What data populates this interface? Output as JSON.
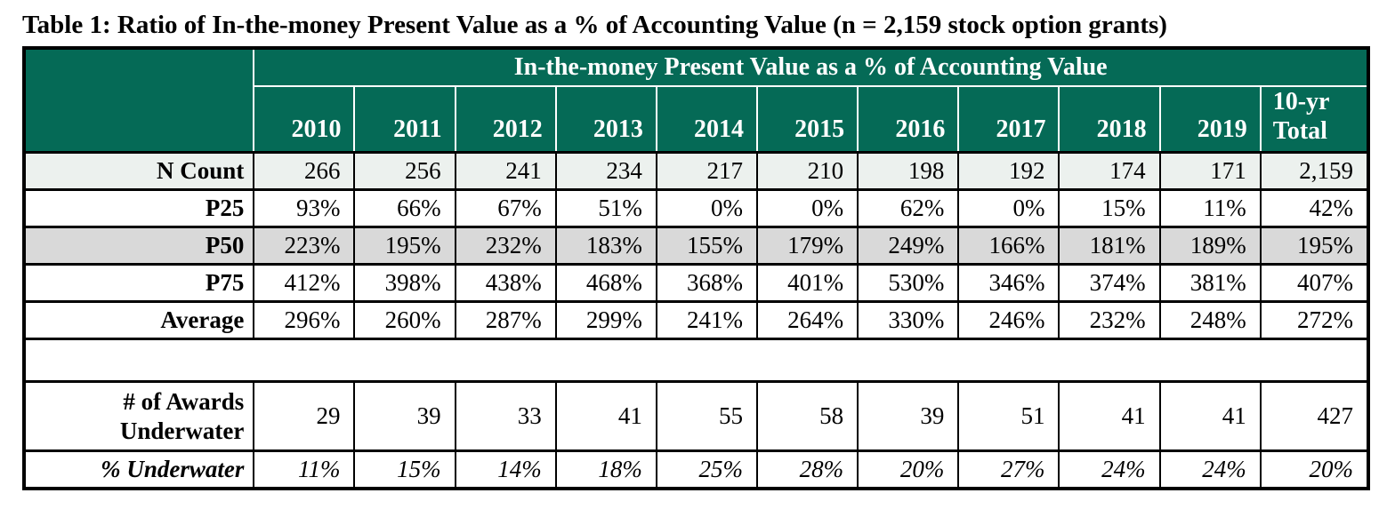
{
  "page_title": "Table 1: Ratio of In-the-money Present Value as a % of Accounting Value (n = 2,159 stock option grants)",
  "colors": {
    "header_green": "#056a56",
    "row_light": "#ecf1ee",
    "row_gray": "#d9d9d9",
    "grid_black": "#000000",
    "grid_white": "#ffffff"
  },
  "table": {
    "group_header": "In-the-money Present Value as a % of Accounting Value",
    "column_headers": [
      "2010",
      "2011",
      "2012",
      "2013",
      "2014",
      "2015",
      "2016",
      "2017",
      "2018",
      "2019",
      "10-yr\nTotal"
    ],
    "rows": {
      "n_count": {
        "label": "N Count",
        "values": [
          "266",
          "256",
          "241",
          "234",
          "217",
          "210",
          "198",
          "192",
          "174",
          "171",
          "2,159"
        ]
      },
      "p25": {
        "label": "P25",
        "values": [
          "93%",
          "66%",
          "67%",
          "51%",
          "0%",
          "0%",
          "62%",
          "0%",
          "15%",
          "11%",
          "42%"
        ]
      },
      "p50": {
        "label": "P50",
        "values": [
          "223%",
          "195%",
          "232%",
          "183%",
          "155%",
          "179%",
          "249%",
          "166%",
          "181%",
          "189%",
          "195%"
        ]
      },
      "p75": {
        "label": "P75",
        "values": [
          "412%",
          "398%",
          "438%",
          "468%",
          "368%",
          "401%",
          "530%",
          "346%",
          "374%",
          "381%",
          "407%"
        ]
      },
      "average": {
        "label": "Average",
        "values": [
          "296%",
          "260%",
          "287%",
          "299%",
          "241%",
          "264%",
          "330%",
          "246%",
          "232%",
          "248%",
          "272%"
        ]
      },
      "awards_underwater": {
        "label": "# of Awards\nUnderwater",
        "values": [
          "29",
          "39",
          "33",
          "41",
          "55",
          "58",
          "39",
          "51",
          "41",
          "41",
          "427"
        ]
      },
      "pct_underwater": {
        "label": "% Underwater",
        "values": [
          "11%",
          "15%",
          "14%",
          "18%",
          "25%",
          "28%",
          "20%",
          "27%",
          "24%",
          "24%",
          "20%"
        ]
      }
    }
  }
}
